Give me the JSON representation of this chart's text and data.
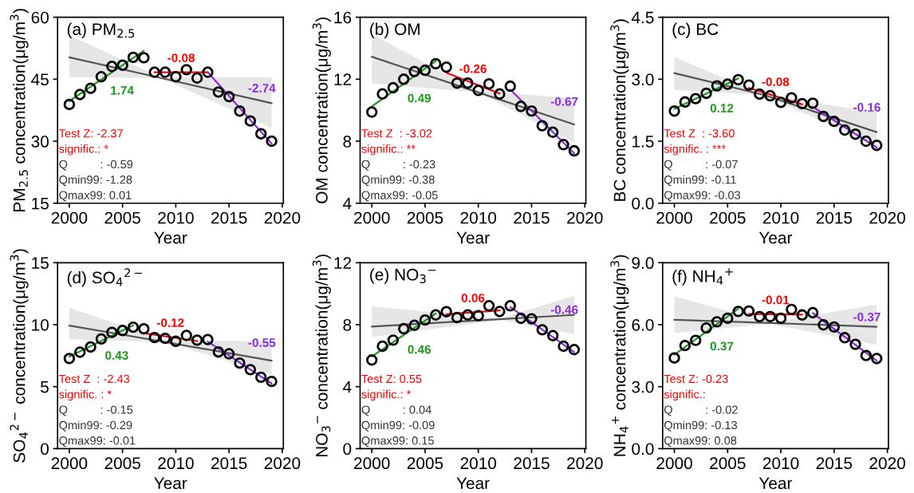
{
  "chart_data": [
    {
      "type": "scatter",
      "title": "(a) PM$_{2.5}$",
      "xlabel": "Year",
      "ylabel": "PM$_{2.5}$ concentration(μg/m$^{3}$)",
      "xlim": [
        1998.9,
        2020.1
      ],
      "xticks": [
        2000,
        2005,
        2010,
        2015,
        2020
      ],
      "ylim": [
        15,
        60
      ],
      "yticks": [
        15,
        30,
        45,
        60
      ],
      "grid": false,
      "series": [
        {
          "marker": "circle",
          "color": "#000000",
          "x": [
            2000,
            2001,
            2002,
            2003,
            2004,
            2005,
            2006,
            2007,
            2008,
            2009,
            2010,
            2011,
            2012,
            2013,
            2014,
            2015,
            2016,
            2017,
            2018,
            2019
          ],
          "values": [
            38.9,
            41.3,
            42.8,
            45.6,
            48.1,
            48.4,
            50.3,
            50.2,
            46.7,
            46.7,
            45.6,
            47.3,
            45.3,
            46.7,
            41.9,
            40.8,
            37.3,
            34.9,
            31.8,
            30.0
          ]
        },
        {
          "type": "line",
          "color": "#555555",
          "x": [
            2000,
            2008.6,
            2019
          ],
          "values": [
            50.3,
            45.3,
            39.2
          ],
          "lower": [
            45.5,
            45.3,
            33.2
          ],
          "upper": [
            55.6,
            45.5,
            45.5
          ]
        },
        {
          "type": "line",
          "color": "#1a9a1a",
          "x": [
            2000,
            2007
          ],
          "values": [
            39.7,
            51.9
          ]
        },
        {
          "type": "line",
          "color": "#ff0000",
          "x": [
            2008,
            2013
          ],
          "values": [
            46.7,
            46.7
          ]
        },
        {
          "type": "line",
          "color": "#8a2be2",
          "x": [
            2013,
            2019
          ],
          "values": [
            46.7,
            29.4
          ]
        }
      ],
      "annotations": [
        "1.74",
        "-0.08",
        "-2.74",
        "Test Z: -2.37",
        "signific.: *",
        "Q          : -0.59",
        "Qmin99: -1.28",
        "Qmax99: 0.01"
      ]
    },
    {
      "type": "scatter",
      "title": "(b) OM",
      "xlabel": "Year",
      "ylabel": "OM concentration(μg/m$^{3}$)",
      "xlim": [
        1998.9,
        2020.1
      ],
      "xticks": [
        2000,
        2005,
        2010,
        2015,
        2020
      ],
      "ylim": [
        4,
        16
      ],
      "yticks": [
        4,
        8,
        12,
        16
      ],
      "grid": false,
      "series": [
        {
          "marker": "circle",
          "color": "#000000",
          "x": [
            2000,
            2001,
            2002,
            2003,
            2004,
            2005,
            2006,
            2007,
            2008,
            2009,
            2010,
            2011,
            2012,
            2013,
            2014,
            2015,
            2016,
            2017,
            2018,
            2019
          ],
          "values": [
            9.88,
            11.05,
            11.45,
            12.0,
            12.5,
            12.58,
            13.0,
            12.78,
            11.75,
            11.75,
            11.28,
            11.7,
            11.05,
            11.55,
            10.25,
            9.95,
            9.0,
            8.58,
            7.78,
            7.38
          ]
        },
        {
          "type": "line",
          "color": "#555555",
          "x": [
            2000,
            2010,
            2019
          ],
          "values": [
            13.45,
            11.15,
            9.08
          ],
          "lower": [
            11.72,
            11.15,
            7.92
          ],
          "upper": [
            14.9,
            11.23,
            10.78
          ]
        },
        {
          "type": "line",
          "color": "#1a9a1a",
          "x": [
            2000,
            2006
          ],
          "values": [
            10.25,
            13.17
          ]
        },
        {
          "type": "line",
          "color": "#ff0000",
          "x": [
            2007,
            2012
          ],
          "values": [
            12.42,
            11.08
          ]
        },
        {
          "type": "line",
          "color": "#8a2be2",
          "x": [
            2013,
            2019
          ],
          "values": [
            11.33,
            7.22
          ]
        }
      ],
      "annotations": [
        "0.49",
        "-0.26",
        "-0.67",
        "Test Z  : -3.02",
        "signific.: **",
        "Q          : -0.23",
        "Qmin99: -0.38",
        "Qmax99: -0.05"
      ]
    },
    {
      "type": "scatter",
      "title": "(c) BC",
      "xlabel": "Year",
      "ylabel": "BC concentration(μg/m$^{3}$)",
      "xlim": [
        1998.9,
        2020.1
      ],
      "xticks": [
        2000,
        2005,
        2010,
        2015,
        2020
      ],
      "ylim": [
        0,
        4.5
      ],
      "yticks": [
        {
          "value": 0,
          "label": "0.0"
        },
        {
          "value": 1.5,
          "label": "1.5"
        },
        {
          "value": 3,
          "label": "3.0"
        },
        {
          "value": 4.5,
          "label": "4.5"
        }
      ],
      "grid": false,
      "series": [
        {
          "marker": "circle",
          "color": "#000000",
          "x": [
            2000,
            2001,
            2002,
            2003,
            2004,
            2005,
            2006,
            2007,
            2008,
            2009,
            2010,
            2011,
            2012,
            2013,
            2014,
            2015,
            2016,
            2017,
            2018,
            2019
          ],
          "values": [
            2.23,
            2.45,
            2.53,
            2.66,
            2.84,
            2.88,
            2.99,
            2.86,
            2.64,
            2.6,
            2.44,
            2.55,
            2.41,
            2.42,
            2.1,
            1.98,
            1.77,
            1.67,
            1.5,
            1.4
          ]
        },
        {
          "type": "line",
          "color": "#555555",
          "x": [
            2000,
            2008.4,
            2019
          ],
          "values": [
            3.15,
            2.62,
            1.72
          ],
          "lower": [
            2.74,
            2.62,
            1.38
          ],
          "upper": [
            3.54,
            2.62,
            2.2
          ]
        },
        {
          "type": "line",
          "color": "#1a9a1a",
          "x": [
            2000,
            2006
          ],
          "values": [
            2.28,
            3.02
          ]
        },
        {
          "type": "line",
          "color": "#ff0000",
          "x": [
            2007,
            2012
          ],
          "values": [
            2.79,
            2.39
          ]
        },
        {
          "type": "line",
          "color": "#8a2be2",
          "x": [
            2013,
            2019
          ],
          "values": [
            2.33,
            1.35
          ]
        }
      ],
      "annotations": [
        "0.12",
        "-0.08",
        "-0.16",
        "Test Z  : -3.60",
        "signific. : ***",
        "Q          : -0.07",
        "Qmin99: -0.11",
        "Qmax99: -0.03"
      ]
    },
    {
      "type": "scatter",
      "title": "(d) SO$_{4}$$^{2−}$",
      "xlabel": "Year",
      "ylabel": "SO$_{4}$$^{2−}$ concentration(μg/m$^{3}$)",
      "xlim": [
        1998.9,
        2020.1
      ],
      "xticks": [
        2000,
        2005,
        2010,
        2015,
        2020
      ],
      "ylim": [
        0,
        15
      ],
      "yticks": [
        0,
        5,
        10,
        15
      ],
      "grid": false,
      "series": [
        {
          "marker": "circle",
          "color": "#000000",
          "x": [
            2000,
            2001,
            2002,
            2003,
            2004,
            2005,
            2006,
            2007,
            2008,
            2009,
            2010,
            2011,
            2012,
            2013,
            2014,
            2015,
            2016,
            2017,
            2018,
            2019
          ],
          "values": [
            7.27,
            7.78,
            8.2,
            8.85,
            9.38,
            9.53,
            9.8,
            9.67,
            8.96,
            8.9,
            8.66,
            9.13,
            8.75,
            8.8,
            7.8,
            7.65,
            6.9,
            6.37,
            5.76,
            5.42
          ]
        },
        {
          "type": "line",
          "color": "#555555",
          "x": [
            2000,
            2009,
            2019
          ],
          "values": [
            9.93,
            8.6,
            7.1
          ],
          "lower": [
            8.83,
            8.6,
            5.97
          ],
          "upper": [
            11.36,
            8.75,
            8.66
          ]
        },
        {
          "type": "line",
          "color": "#1a9a1a",
          "x": [
            2000,
            2006
          ],
          "values": [
            7.42,
            9.95
          ]
        },
        {
          "type": "line",
          "color": "#ff0000",
          "x": [
            2007,
            2012
          ],
          "values": [
            9.32,
            8.68
          ]
        },
        {
          "type": "line",
          "color": "#8a2be2",
          "x": [
            2013,
            2019
          ],
          "values": [
            8.64,
            5.25
          ]
        }
      ],
      "annotations": [
        "0.43",
        "-0.12",
        "-0.55",
        "Test Z  : -2.43",
        "signific. : *",
        "Q          : -0.15",
        "Qmin99: -0.29",
        "Qmax99: -0.01"
      ]
    },
    {
      "type": "scatter",
      "title": "(e) NO$_{3}$$^{−}$",
      "xlabel": "Year",
      "ylabel": "NO$_{3}$$^{−}$ concentration(μg/m$^{3}$)",
      "xlim": [
        1998.9,
        2020.1
      ],
      "xticks": [
        2000,
        2005,
        2010,
        2015,
        2020
      ],
      "ylim": [
        0,
        12
      ],
      "yticks": [
        0,
        4,
        8,
        12
      ],
      "grid": false,
      "series": [
        {
          "marker": "circle",
          "color": "#000000",
          "x": [
            2000,
            2001,
            2002,
            2003,
            2004,
            2005,
            2006,
            2007,
            2008,
            2009,
            2010,
            2011,
            2012,
            2013,
            2014,
            2015,
            2016,
            2017,
            2018,
            2019
          ],
          "values": [
            5.72,
            6.61,
            7.0,
            7.74,
            7.96,
            8.3,
            8.63,
            8.84,
            8.46,
            8.63,
            8.58,
            9.22,
            8.85,
            9.22,
            8.41,
            8.38,
            7.67,
            7.29,
            6.61,
            6.39
          ]
        },
        {
          "type": "line",
          "color": "#555555",
          "x": [
            2000,
            2012,
            2019
          ],
          "values": [
            7.88,
            8.35,
            8.63
          ],
          "lower": [
            7.2,
            8.3,
            7.4
          ],
          "upper": [
            9.19,
            8.4,
            9.86
          ]
        },
        {
          "type": "line",
          "color": "#1a9a1a",
          "x": [
            2000,
            2006
          ],
          "values": [
            5.95,
            8.72
          ]
        },
        {
          "type": "line",
          "color": "#ff0000",
          "x": [
            2007,
            2012
          ],
          "values": [
            8.67,
            8.92
          ]
        },
        {
          "type": "line",
          "color": "#8a2be2",
          "x": [
            2013,
            2019
          ],
          "values": [
            9.14,
            6.23
          ]
        }
      ],
      "annotations": [
        "0.46",
        "0.06",
        "-0.46",
        "Test Z: 0.55",
        "signific.: *",
        "Q          : 0.04",
        "Qmin99: -0.09",
        "Qmax99: 0.15"
      ]
    },
    {
      "type": "scatter",
      "title": "(f) NH$_{4}$$^{+}$",
      "xlabel": "Year",
      "ylabel": "NH$_{4}$$^{+}$ concentration(μg/m$^{3}$)",
      "xlim": [
        1998.9,
        2020.1
      ],
      "xticks": [
        2000,
        2005,
        2010,
        2015,
        2020
      ],
      "ylim": [
        0,
        9
      ],
      "yticks": [
        {
          "value": 0,
          "label": "0.0"
        },
        {
          "value": 3,
          "label": "3.0"
        },
        {
          "value": 6,
          "label": "6.0"
        },
        {
          "value": 9,
          "label": "9.0"
        }
      ],
      "grid": false,
      "series": [
        {
          "marker": "circle",
          "color": "#000000",
          "x": [
            2000,
            2001,
            2002,
            2003,
            2004,
            2005,
            2006,
            2007,
            2008,
            2009,
            2010,
            2011,
            2012,
            2013,
            2014,
            2015,
            2016,
            2017,
            2018,
            2019
          ],
          "values": [
            4.39,
            4.99,
            5.24,
            5.84,
            6.14,
            6.31,
            6.64,
            6.66,
            6.39,
            6.39,
            6.31,
            6.74,
            6.47,
            6.58,
            5.99,
            5.89,
            5.37,
            5.05,
            4.51,
            4.36
          ]
        },
        {
          "type": "line",
          "color": "#555555",
          "x": [
            2000,
            2009,
            2019
          ],
          "values": [
            6.24,
            6.08,
            5.9
          ],
          "lower": [
            5.59,
            6.05,
            5.02
          ],
          "upper": [
            7.37,
            6.1,
            6.97
          ]
        },
        {
          "type": "line",
          "color": "#1a9a1a",
          "x": [
            2000,
            2006
          ],
          "values": [
            4.55,
            6.77
          ]
        },
        {
          "type": "line",
          "color": "#ff0000",
          "x": [
            2007,
            2012
          ],
          "values": [
            6.52,
            6.49
          ]
        },
        {
          "type": "line",
          "color": "#8a2be2",
          "x": [
            2013,
            2019
          ],
          "values": [
            6.56,
            4.26
          ]
        }
      ],
      "annotations": [
        "0.37",
        "-0.01",
        "-0.37",
        "Test Z: -0.23",
        "signific.:",
        "Q          : -0.02",
        "Qmin99: -0.13",
        "Qmax99: 0.08"
      ]
    }
  ]
}
